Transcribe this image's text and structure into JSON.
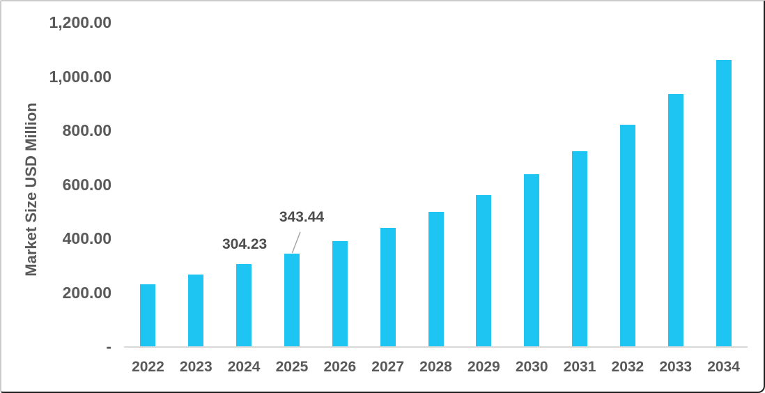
{
  "chart_data": {
    "type": "bar",
    "title": "",
    "xlabel": "",
    "ylabel": "Market Size USD Million",
    "ylim": [
      0,
      1200
    ],
    "ytick_step": 200,
    "yticks": [
      {
        "value": 1200,
        "label": "1,200.00"
      },
      {
        "value": 1000,
        "label": "1,000.00"
      },
      {
        "value": 800,
        "label": "800.00"
      },
      {
        "value": 600,
        "label": "600.00"
      },
      {
        "value": 400,
        "label": "400.00"
      },
      {
        "value": 200,
        "label": "200.00"
      },
      {
        "value": 0,
        "label": "-"
      }
    ],
    "categories": [
      "2022",
      "2023",
      "2024",
      "2025",
      "2026",
      "2027",
      "2028",
      "2029",
      "2030",
      "2031",
      "2032",
      "2033",
      "2034"
    ],
    "values": [
      230,
      267,
      304.23,
      343.44,
      389,
      439,
      498,
      561,
      638,
      723,
      820,
      933,
      1061
    ],
    "data_labels": [
      {
        "category": "2024",
        "text": "304.23",
        "leader_line": false
      },
      {
        "category": "2025",
        "text": "343.44",
        "leader_line": true
      }
    ],
    "legend": null,
    "grid": false,
    "colors": {
      "bar": "#1ec5f3",
      "axis_text": "#595959",
      "axis_line": "#d9d9d9",
      "leader_line": "#a6a6a6"
    }
  }
}
